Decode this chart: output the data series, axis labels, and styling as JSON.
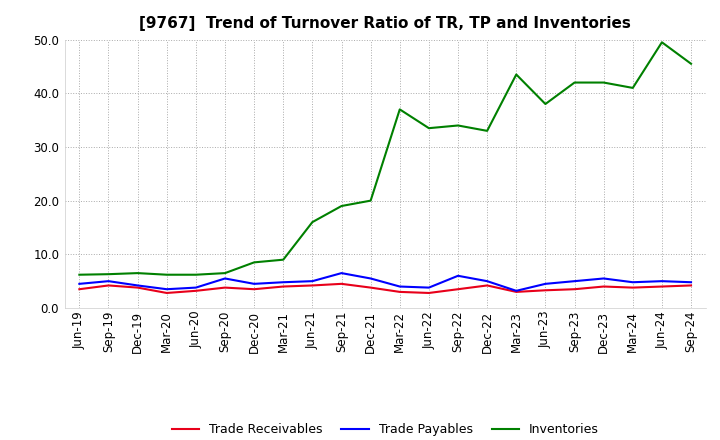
{
  "title": "[9767]  Trend of Turnover Ratio of TR, TP and Inventories",
  "labels": [
    "Jun-19",
    "Sep-19",
    "Dec-19",
    "Mar-20",
    "Jun-20",
    "Sep-20",
    "Dec-20",
    "Mar-21",
    "Jun-21",
    "Sep-21",
    "Dec-21",
    "Mar-22",
    "Jun-22",
    "Sep-22",
    "Dec-22",
    "Mar-23",
    "Jun-23",
    "Sep-23",
    "Dec-23",
    "Mar-24",
    "Jun-24",
    "Sep-24"
  ],
  "trade_receivables": [
    3.5,
    4.2,
    3.8,
    2.8,
    3.2,
    3.8,
    3.5,
    4.0,
    4.2,
    4.5,
    3.8,
    3.0,
    2.8,
    3.5,
    4.2,
    3.0,
    3.3,
    3.5,
    4.0,
    3.8,
    4.0,
    4.2
  ],
  "trade_payables": [
    4.5,
    5.0,
    4.2,
    3.5,
    3.8,
    5.5,
    4.5,
    4.8,
    5.0,
    6.5,
    5.5,
    4.0,
    3.8,
    6.0,
    5.0,
    3.2,
    4.5,
    5.0,
    5.5,
    4.8,
    5.0,
    4.8
  ],
  "inventories": [
    6.2,
    6.3,
    6.5,
    6.2,
    6.2,
    6.5,
    8.5,
    9.0,
    16.0,
    19.0,
    20.0,
    37.0,
    33.5,
    34.0,
    33.0,
    43.5,
    38.0,
    42.0,
    42.0,
    41.0,
    49.5,
    45.5
  ],
  "tr_color": "#e8001a",
  "tp_color": "#0000ff",
  "inv_color": "#008000",
  "ylim": [
    0.0,
    50.0
  ],
  "yticks": [
    0.0,
    10.0,
    20.0,
    30.0,
    40.0,
    50.0
  ],
  "legend_labels": [
    "Trade Receivables",
    "Trade Payables",
    "Inventories"
  ],
  "background_color": "#ffffff",
  "plot_bg_color": "#ffffff",
  "grid_color": "#aaaaaa",
  "title_fontsize": 11,
  "tick_fontsize": 8.5,
  "linewidth": 1.5
}
